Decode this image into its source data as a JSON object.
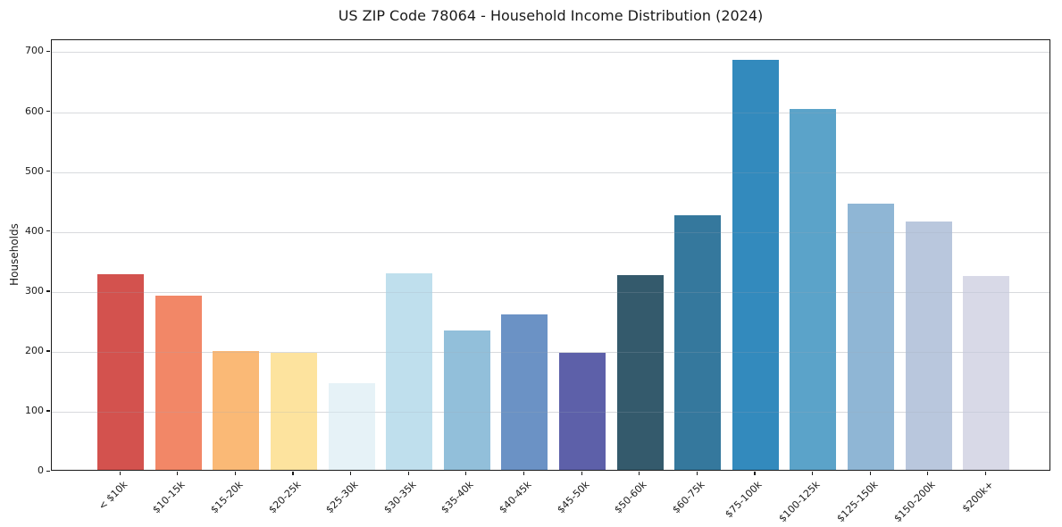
{
  "title": "US ZIP Code 78064 - Household Income Distribution (2024)",
  "chart_data": {
    "type": "bar",
    "title": "US ZIP Code 78064 - Household Income Distribution (2024)",
    "xlabel": "",
    "ylabel": "Households",
    "categories": [
      "< $10k",
      "$10-15k",
      "$15-20k",
      "$20-25k",
      "$25-30k",
      "$30-35k",
      "$35-40k",
      "$40-45k",
      "$45-50k",
      "$50-60k",
      "$60-75k",
      "$75-100k",
      "$100-125k",
      "$125-150k",
      "$150-200k",
      "$200k+"
    ],
    "values": [
      327,
      291,
      198,
      196,
      145,
      328,
      233,
      259,
      195,
      325,
      425,
      685,
      602,
      444,
      414,
      323
    ],
    "bar_colors": [
      "#d3524e",
      "#f28767",
      "#fab976",
      "#fde39e",
      "#e6f2f7",
      "#bfdfed",
      "#92bfda",
      "#6b92c5",
      "#5d60a9",
      "#345a6c",
      "#35789d",
      "#338abd",
      "#5ba3c9",
      "#8fb6d5",
      "#b9c7dd",
      "#d8d9e7"
    ],
    "yticks": [
      0,
      100,
      200,
      300,
      400,
      500,
      600,
      700
    ],
    "ylim": [
      0,
      720
    ],
    "grid": "horizontal",
    "legend": "none",
    "axis_colors": {
      "spine": "#1a1a1a",
      "grid": "#e8e8e8",
      "text": "#1a1a1a"
    }
  }
}
